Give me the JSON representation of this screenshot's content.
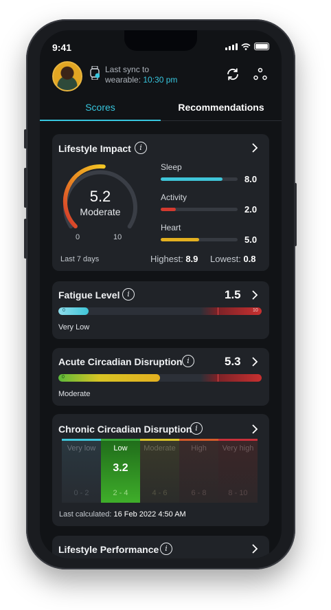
{
  "status_bar": {
    "time": "9:41"
  },
  "header": {
    "sync_label": "Last sync to",
    "sync_label_2": "wearable:",
    "sync_time": "10:30 pm"
  },
  "tabs": [
    {
      "label": "Scores",
      "active": true
    },
    {
      "label": "Recommendations",
      "active": false
    }
  ],
  "lifestyle_impact": {
    "title": "Lifestyle Impact",
    "score": "5.2",
    "score_label": "Moderate",
    "gauge_min": "0",
    "gauge_max": "10",
    "gauge_fraction": 0.52,
    "period": "Last 7 days",
    "highest_label": "Highest:",
    "highest_value": "8.9",
    "lowest_label": "Lowest:",
    "lowest_value": "0.8",
    "metrics": [
      {
        "label": "Sleep",
        "value": "8.0",
        "fraction": 0.8,
        "color": "#3fc5d8"
      },
      {
        "label": "Activity",
        "value": "2.0",
        "fraction": 0.2,
        "color": "#d33a2f"
      },
      {
        "label": "Heart",
        "value": "5.0",
        "fraction": 0.5,
        "color": "#e3b020"
      }
    ]
  },
  "fatigue": {
    "title": "Fatigue Level",
    "value": "1.5",
    "label": "Very Low",
    "fraction": 0.15,
    "scale_max": "10",
    "scale_min": "0"
  },
  "acute": {
    "title": "Acute Circadian Disruption",
    "value": "5.3",
    "label": "Moderate",
    "fraction": 0.5,
    "scale_min": "0"
  },
  "chronic": {
    "title": "Chronic Circadian Disruption",
    "value": "3.2",
    "last_calc_label": "Last calculated:",
    "last_calc_value": "16 Feb 2022 4:50 AM",
    "segments": [
      {
        "name": "Very low",
        "range": "0 - 2",
        "color": "#3fc5d8"
      },
      {
        "name": "Low",
        "range": "2 - 4",
        "color": "#3aa83a",
        "active": true
      },
      {
        "name": "Moderate",
        "range": "4 - 6",
        "color": "#d9c22a"
      },
      {
        "name": "High",
        "range": "6 - 8",
        "color": "#d65a2a"
      },
      {
        "name": "Very high",
        "range": "8 - 10",
        "color": "#c8303a"
      }
    ]
  },
  "performance": {
    "title": "Lifestyle Performance"
  },
  "colors": {
    "accent": "#37c6de",
    "card": "#202328",
    "background": "#111316"
  }
}
